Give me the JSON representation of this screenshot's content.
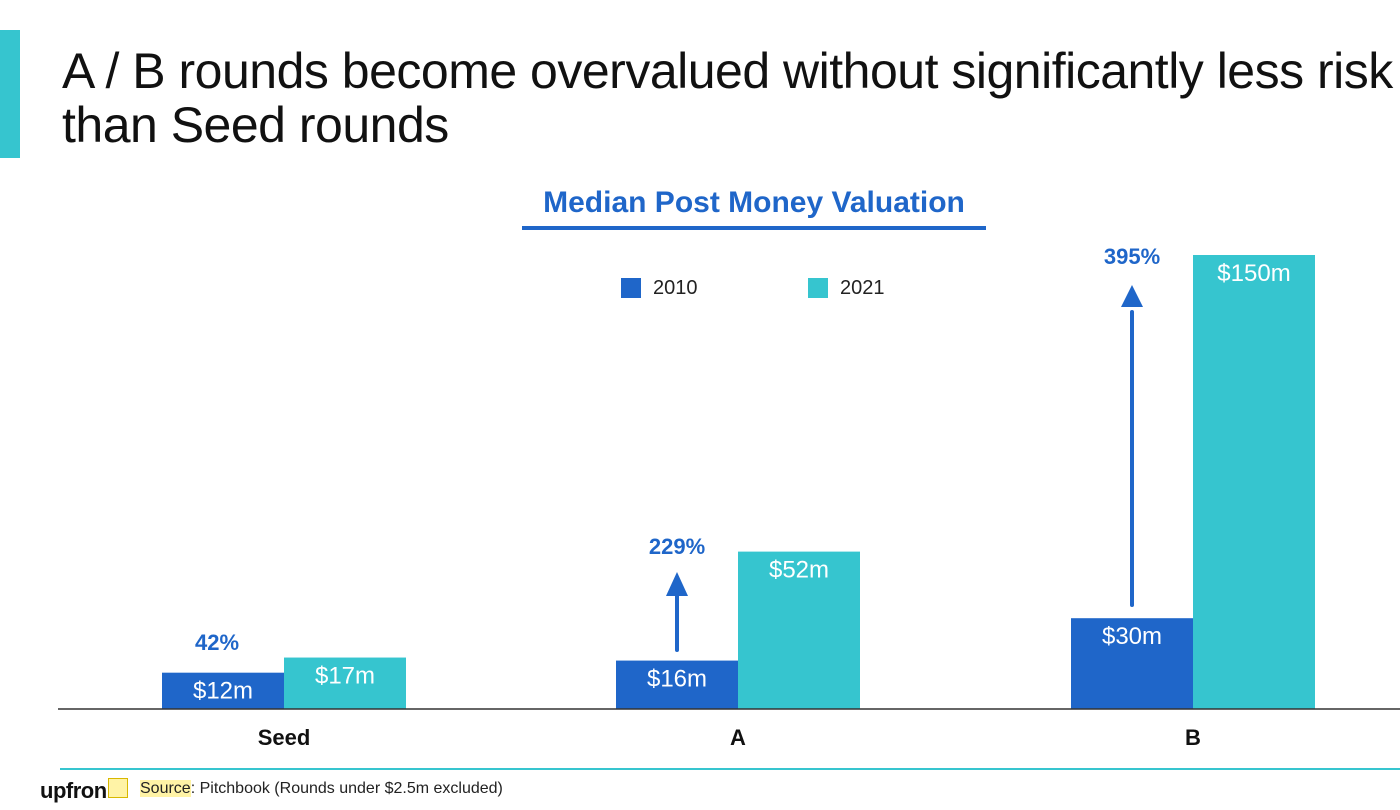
{
  "slide": {
    "title": "A / B rounds become overvalued without significantly less risk than Seed rounds",
    "logo_text": "upfron"
  },
  "source": {
    "label": "Source",
    "text": ": Pitchbook (Rounds under $2.5m excluded)"
  },
  "colors": {
    "accent": "#36c5cf",
    "series_2010": "#1f66c9",
    "series_2021": "#36c5cf",
    "annotation": "#1f66c9"
  },
  "chart_data": {
    "type": "bar",
    "title": "Median Post Money Valuation",
    "xlabel": "",
    "ylabel": "",
    "ylim": [
      0,
      150
    ],
    "legend_position": "top-center",
    "categories": [
      "Seed",
      "A",
      "B"
    ],
    "series": [
      {
        "name": "2010",
        "values": [
          12,
          16,
          30
        ],
        "labels": [
          "$12m",
          "$16m",
          "$30m"
        ]
      },
      {
        "name": "2021",
        "values": [
          17,
          52,
          150
        ],
        "labels": [
          "$17m",
          "$52m",
          "$150m"
        ]
      }
    ],
    "annotations": [
      "42%",
      "229%",
      "395%"
    ]
  }
}
